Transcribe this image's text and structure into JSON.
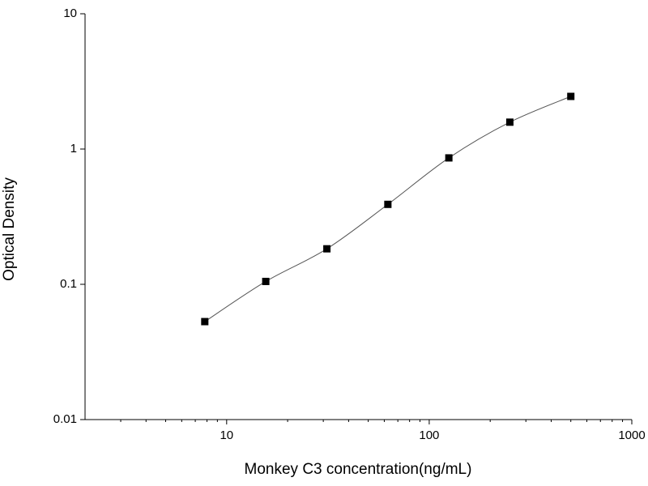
{
  "chart_data": {
    "type": "scatter",
    "x_label": "Monkey C3 concentration(ng/mL)",
    "y_label": "Optical Density",
    "x": [
      7.8,
      15.6,
      31.25,
      62.5,
      125,
      250,
      500
    ],
    "values": [
      0.053,
      0.105,
      0.183,
      0.39,
      0.86,
      1.58,
      2.45
    ],
    "color": "#000000",
    "fit_curve": true,
    "xscale": "log",
    "yscale": "log",
    "xlim": [
      2,
      1000
    ],
    "ylim": [
      0.01,
      10
    ],
    "xticks": [
      10,
      100,
      1000
    ],
    "xminorticks": [
      3,
      4,
      5,
      6,
      7,
      8,
      9,
      20,
      30,
      40,
      50,
      60,
      70,
      80,
      90,
      200,
      300,
      400,
      500,
      600,
      700,
      800,
      900
    ],
    "yticks": [
      0.01,
      0.1,
      1,
      10
    ]
  }
}
